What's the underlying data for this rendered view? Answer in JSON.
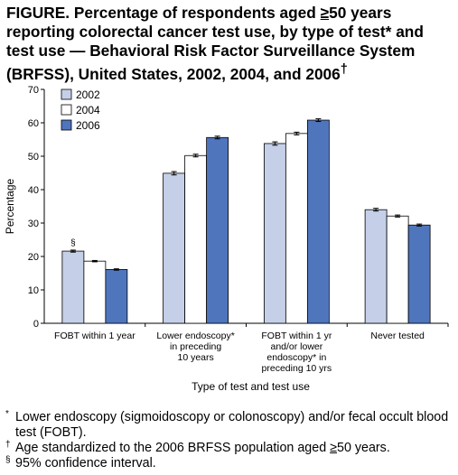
{
  "title_parts": {
    "pre": "FIGURE. Percentage of respondents aged ",
    "ge": "≥",
    "post": "50 years reporting colorectal cancer test use, by type of test* and test use — Behavioral Risk Factor Surveillance System (BRFSS), United States, 2002, 2004, and 2006",
    "dagger": "†"
  },
  "footnotes": {
    "star_mark": "*",
    "star_text": "Lower endoscopy (sigmoidoscopy or colonoscopy) and/or fecal occult blood test (FOBT).",
    "dagger_mark": "†",
    "dagger_pre": "Age standardized to the 2006 BRFSS population aged ",
    "dagger_ge": "≥",
    "dagger_post": "50 years.",
    "section_mark": "§",
    "section_text": "95% confidence interval."
  },
  "chart_data": {
    "type": "bar",
    "categories": [
      [
        "FOBT within 1 year"
      ],
      [
        "Lower endoscopy*",
        "in preceding",
        "10 years"
      ],
      [
        "FOBT within 1 yr",
        "and/or lower",
        "endoscopy* in",
        "preceding 10 yrs"
      ],
      [
        "Never tested"
      ]
    ],
    "series": [
      {
        "name": "2002",
        "color": "#c5d0e8",
        "values": [
          21.6,
          44.9,
          53.8,
          34.0
        ],
        "ci": [
          0.3,
          0.5,
          0.5,
          0.4
        ]
      },
      {
        "name": "2004",
        "color": "#ffffff",
        "values": [
          18.6,
          50.2,
          56.8,
          32.1
        ],
        "ci": [
          0.2,
          0.4,
          0.4,
          0.3
        ]
      },
      {
        "name": "2006",
        "color": "#4f75bd",
        "values": [
          16.1,
          55.6,
          60.8,
          29.4
        ],
        "ci": [
          0.2,
          0.4,
          0.4,
          0.3
        ]
      }
    ],
    "xlabel": "Type of test and test use",
    "ylabel": "Percentage",
    "ylim": [
      0,
      70
    ],
    "yticks": [
      0,
      10,
      20,
      30,
      40,
      50,
      60,
      70
    ],
    "legend_position": "top-left",
    "annotation": {
      "text": "§",
      "category": 0,
      "series": 0
    }
  }
}
